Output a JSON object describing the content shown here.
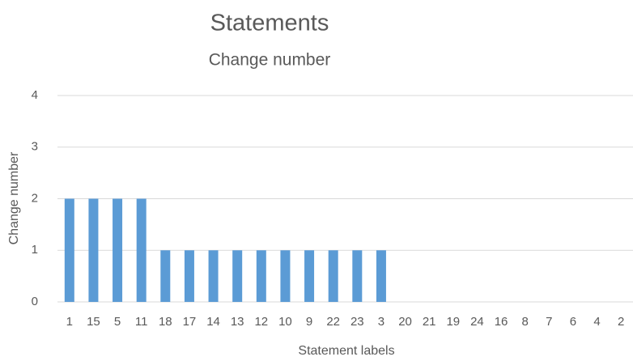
{
  "chart_data": {
    "type": "bar",
    "title": "Statements",
    "subtitle": "Change number",
    "xlabel": "Statement labels",
    "ylabel": "Change number",
    "categories": [
      "1",
      "15",
      "5",
      "11",
      "18",
      "17",
      "14",
      "13",
      "12",
      "10",
      "9",
      "22",
      "23",
      "3",
      "20",
      "21",
      "19",
      "24",
      "16",
      "8",
      "7",
      "6",
      "4",
      "2"
    ],
    "values": [
      2,
      2,
      2,
      2,
      1,
      1,
      1,
      1,
      1,
      1,
      1,
      1,
      1,
      1,
      0,
      0,
      0,
      0,
      0,
      0,
      0,
      0,
      0,
      0
    ],
    "color": "#5b9bd5",
    "ylim": [
      0,
      4
    ],
    "yticks": [
      0,
      1,
      2,
      3,
      4
    ],
    "grid": true
  }
}
